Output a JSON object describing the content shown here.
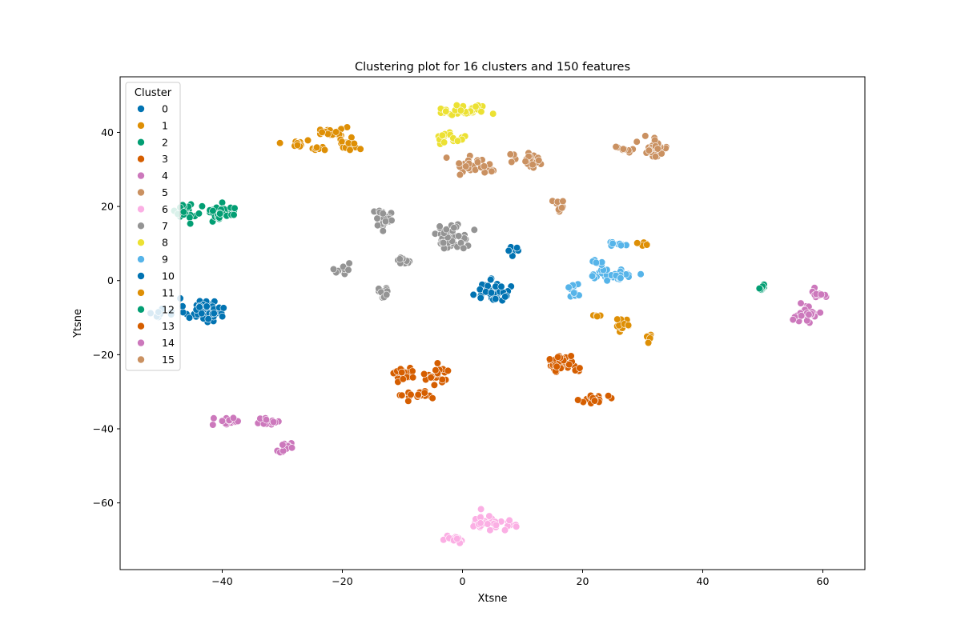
{
  "chart_data": {
    "type": "scatter",
    "title": "Clustering plot for 16 clusters and 150 features",
    "xlabel": "Xtsne",
    "ylabel": "Ytsne",
    "xlim": [
      -57,
      67
    ],
    "ylim": [
      -78,
      55
    ],
    "xticks": [
      -40,
      -20,
      0,
      20,
      40,
      60
    ],
    "yticks": [
      -60,
      -40,
      -20,
      0,
      20,
      40
    ],
    "xtick_labels": [
      "−40",
      "−20",
      "0",
      "20",
      "40",
      "60"
    ],
    "ytick_labels": [
      "−60",
      "−40",
      "−20",
      "0",
      "20",
      "40"
    ],
    "grid": false,
    "legend": {
      "title": "Cluster",
      "placement": "top-left"
    },
    "series": [
      {
        "name": "0",
        "color": "#0173b2",
        "blobs": [
          [
            -43,
            -8,
            3,
            3,
            55
          ],
          [
            -50,
            -9,
            1.5,
            1,
            8
          ]
        ]
      },
      {
        "name": "1",
        "color": "#de8f05",
        "blobs": [
          [
            -22,
            40,
            2.5,
            1.5,
            25
          ],
          [
            -19,
            37,
            2,
            1.5,
            18
          ],
          [
            -28,
            37,
            2,
            1,
            10
          ],
          [
            -24,
            35.5,
            1.5,
            0.6,
            8
          ]
        ]
      },
      {
        "name": "2",
        "color": "#029e73",
        "blobs": [
          [
            -46,
            19,
            1.5,
            2.5,
            22
          ],
          [
            -40,
            18.5,
            2.5,
            1.8,
            38
          ]
        ]
      },
      {
        "name": "3",
        "color": "#d55e00",
        "blobs": [
          [
            -10,
            -25,
            1.8,
            2,
            25
          ],
          [
            -4,
            -26,
            2,
            2.5,
            20
          ],
          [
            -7,
            -31,
            2.5,
            1.2,
            18
          ],
          [
            16.5,
            -22.5,
            2.5,
            2,
            40
          ],
          [
            22,
            -32,
            2,
            1.5,
            20
          ]
        ]
      },
      {
        "name": "4",
        "color": "#cc78bc",
        "blobs": [
          [
            -39,
            -38,
            1.8,
            2,
            14
          ],
          [
            -32,
            -38,
            2,
            1.5,
            14
          ],
          [
            -29.5,
            -45,
            1.5,
            1.5,
            12
          ],
          [
            57,
            -9,
            2.5,
            2,
            30
          ],
          [
            59.5,
            -3.5,
            1.5,
            1,
            12
          ]
        ]
      },
      {
        "name": "5",
        "color": "#ca9161",
        "blobs": [
          [
            3,
            31,
            4,
            2.5,
            28
          ],
          [
            11,
            32,
            3,
            2,
            22
          ],
          [
            32,
            36,
            2,
            2.5,
            38
          ],
          [
            27.5,
            35.5,
            1.5,
            1.5,
            8
          ],
          [
            16,
            20,
            1,
            1.5,
            8
          ]
        ]
      },
      {
        "name": "6",
        "color": "#fbafe4",
        "blobs": [
          [
            4,
            -65,
            2.5,
            2,
            28
          ],
          [
            -1.5,
            -70,
            2,
            1.2,
            15
          ],
          [
            8,
            -66,
            1.5,
            1.5,
            8
          ]
        ]
      },
      {
        "name": "7",
        "color": "#949494",
        "blobs": [
          [
            -13,
            17,
            2,
            2,
            28
          ],
          [
            -2,
            12,
            2.5,
            3,
            50
          ],
          [
            -10,
            5.5,
            1,
            0.8,
            12
          ],
          [
            -20,
            3,
            1.5,
            1.2,
            10
          ],
          [
            -13,
            -4,
            1.2,
            1.8,
            14
          ]
        ]
      },
      {
        "name": "8",
        "color": "#ece133",
        "blobs": [
          [
            0,
            46,
            4,
            1.5,
            40
          ],
          [
            -2,
            38.5,
            2,
            1.2,
            18
          ]
        ]
      },
      {
        "name": "9",
        "color": "#56b4e9",
        "blobs": [
          [
            25,
            1.5,
            3,
            1.5,
            40
          ],
          [
            26,
            10,
            2,
            0.8,
            10
          ],
          [
            18.5,
            -3,
            1.5,
            1.8,
            10
          ],
          [
            22.5,
            5,
            1,
            0.7,
            6
          ]
        ]
      },
      {
        "name": "10",
        "color": "#0173b2",
        "blobs": [
          [
            5,
            -3,
            2.5,
            2.5,
            45
          ],
          [
            8,
            8,
            1.5,
            1.5,
            8
          ]
        ]
      },
      {
        "name": "11",
        "color": "#de8f05",
        "blobs": [
          [
            27,
            -11.5,
            1.5,
            1.5,
            18
          ],
          [
            31,
            -15.5,
            1,
            1,
            8
          ],
          [
            22.5,
            -9.5,
            1,
            0.6,
            6
          ],
          [
            30,
            9.5,
            0.8,
            1,
            6
          ]
        ]
      },
      {
        "name": "12",
        "color": "#029e73",
        "blobs": [
          [
            50,
            -2,
            1,
            0.6,
            10
          ]
        ]
      },
      {
        "name": "13",
        "color": "#d55e00",
        "blobs": []
      },
      {
        "name": "14",
        "color": "#cc78bc",
        "blobs": []
      },
      {
        "name": "15",
        "color": "#ca9161",
        "blobs": []
      }
    ]
  }
}
